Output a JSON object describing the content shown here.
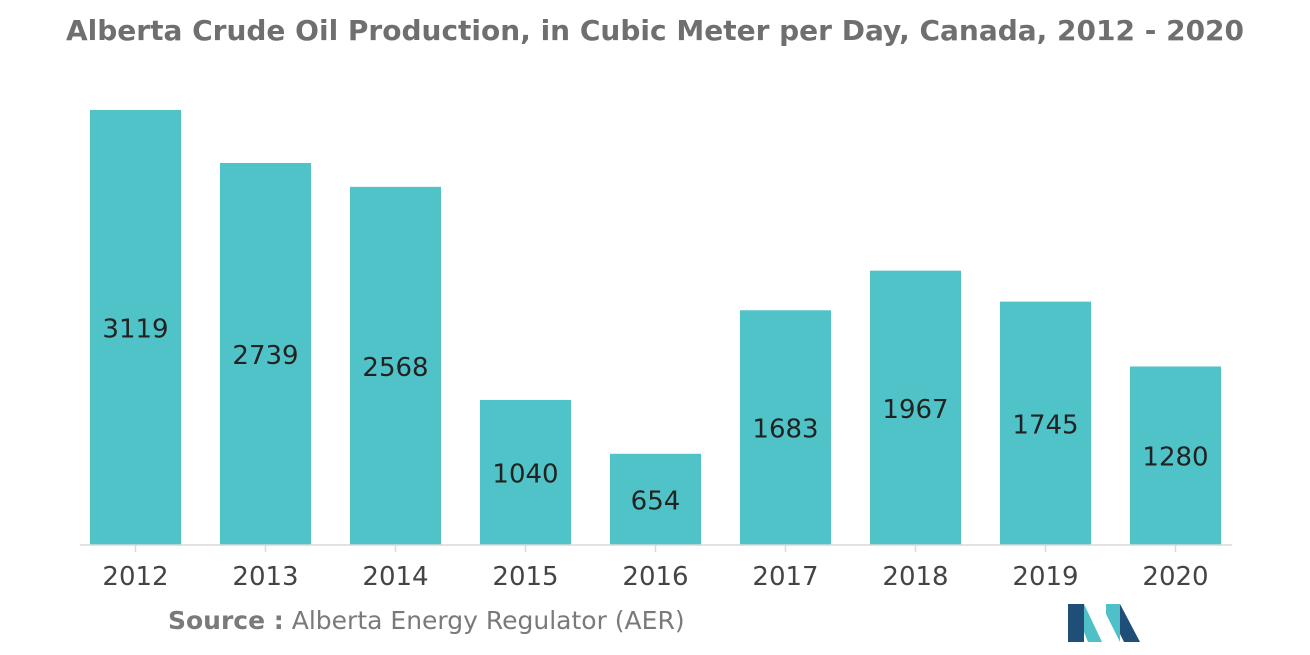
{
  "chart_data": {
    "type": "bar",
    "title": "Alberta Crude Oil Production, in Cubic Meter per Day, Canada, 2012 - 2020",
    "xlabel": "",
    "ylabel": "",
    "categories": [
      "2012",
      "2013",
      "2014",
      "2015",
      "2016",
      "2017",
      "2018",
      "2019",
      "2020"
    ],
    "values": [
      3119,
      2739,
      2568,
      1040,
      654,
      1683,
      1967,
      1745,
      1280
    ],
    "ylim": [
      0,
      3119
    ],
    "grid": false,
    "legend": "none",
    "data_labels": "inside-bar-middle"
  },
  "colors": {
    "bar": "#50c3c8",
    "title": "#6f6f6f",
    "label": "#222222",
    "axis": "#d9d9d9",
    "tick_label": "#444444",
    "source": "#7a7a7a",
    "logo_dark": "#1f4e79",
    "logo_light": "#4fc0c8"
  },
  "source": {
    "label": "Source :",
    "text": "Alberta Energy Regulator (AER)"
  },
  "logo": {
    "icon": "mordor-intelligence-logo-icon"
  }
}
